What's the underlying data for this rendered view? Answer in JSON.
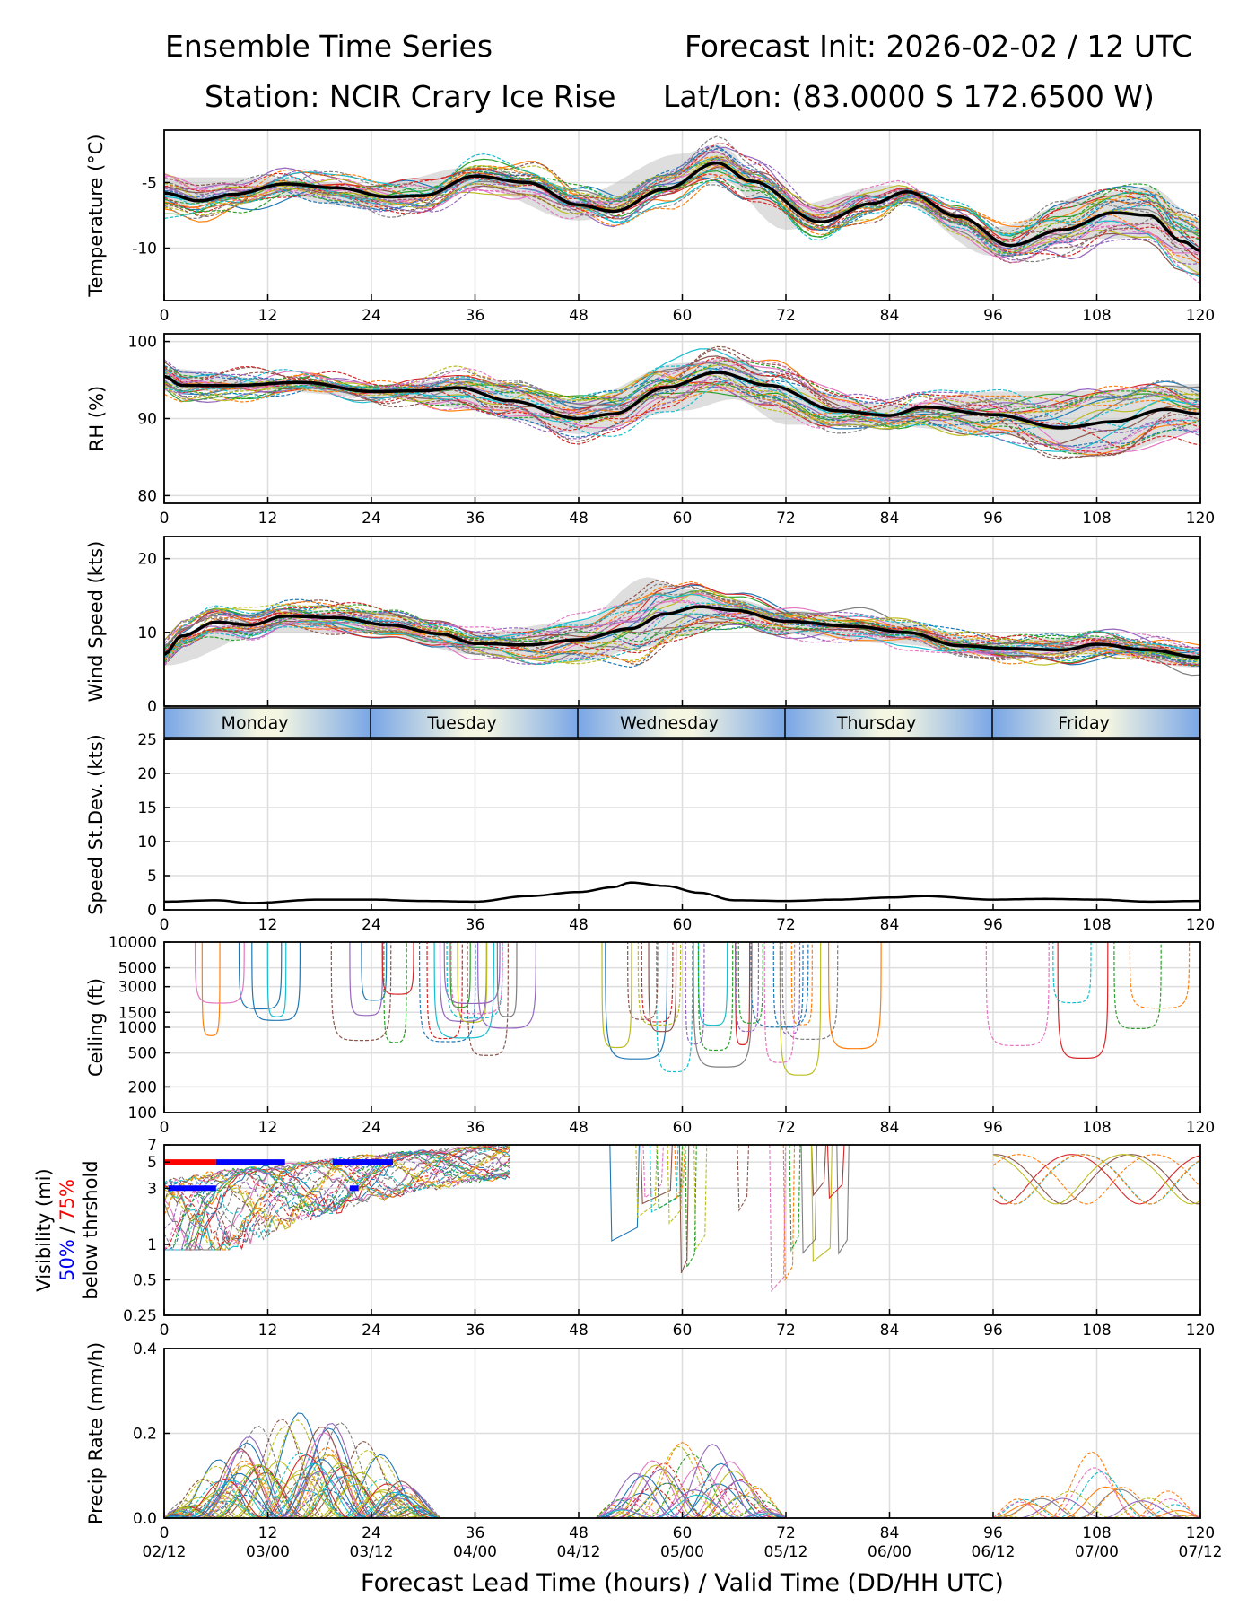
{
  "header": {
    "title_left": "Ensemble Time Series",
    "title_right": "Forecast Init: 2026-02-02 / 12 UTC",
    "station": "Station: NCIR Crary Ice Rise",
    "latlon": "Lat/Lon: (83.0000 S 172.6500 W)"
  },
  "xaxis": {
    "label": "Forecast Lead Time (hours) / Valid Time (DD/HH UTC)",
    "hour_ticks": [
      0,
      12,
      24,
      36,
      48,
      60,
      72,
      84,
      96,
      108,
      120
    ],
    "valid_labels": [
      "02/12",
      "03/00",
      "03/12",
      "04/00",
      "04/12",
      "05/00",
      "05/12",
      "06/00",
      "06/12",
      "07/00",
      "07/12"
    ],
    "range": [
      0,
      120
    ]
  },
  "days": [
    "Monday",
    "Tuesday",
    "Wednesday",
    "Thursday",
    "Friday"
  ],
  "ensemble_colors": [
    "#1f77b4",
    "#ff7f0e",
    "#2ca02c",
    "#d62728",
    "#9467bd",
    "#8c564b",
    "#e377c2",
    "#7f7f7f",
    "#bcbd22",
    "#17becf"
  ],
  "chart_data": [
    {
      "type": "line",
      "id": "temp",
      "ylabel": "Temperature (°C)",
      "ylim": [
        -14,
        -1
      ],
      "yticks": [
        -5,
        -10
      ],
      "grid": true,
      "series": [
        {
          "name": "ensemble mean",
          "x": [
            0,
            4,
            8,
            14,
            20,
            26,
            30,
            36,
            42,
            48,
            52,
            58,
            64,
            68,
            76,
            82,
            86,
            92,
            98,
            104,
            110,
            114,
            118,
            120
          ],
          "values": [
            -5.8,
            -6.4,
            -5.9,
            -5.1,
            -5.4,
            -6.1,
            -6.0,
            -4.5,
            -5.0,
            -6.7,
            -7.2,
            -5.5,
            -3.5,
            -4.9,
            -8.0,
            -6.6,
            -5.7,
            -7.6,
            -9.8,
            -8.6,
            -7.3,
            -7.5,
            -9.5,
            -10.2
          ]
        },
        {
          "name": "spread upper",
          "x": [
            0,
            12,
            24,
            36,
            48,
            60,
            64,
            72,
            84,
            96,
            108,
            114,
            120
          ],
          "values": [
            -4.6,
            -4.6,
            -5.2,
            -3.8,
            -5.9,
            -2.8,
            -2.1,
            -6.8,
            -5.2,
            -8.4,
            -5.8,
            -5.3,
            -7.8
          ]
        },
        {
          "name": "spread lower",
          "x": [
            0,
            12,
            24,
            36,
            48,
            60,
            64,
            72,
            84,
            96,
            108,
            114,
            120
          ],
          "values": [
            -6.9,
            -6.0,
            -7.0,
            -5.4,
            -7.9,
            -5.2,
            -4.6,
            -8.6,
            -6.2,
            -10.6,
            -9.3,
            -9.2,
            -12.0
          ]
        }
      ]
    },
    {
      "type": "line",
      "id": "rh",
      "ylabel": "RH (%)",
      "ylim": [
        79,
        101
      ],
      "yticks": [
        80,
        90,
        100
      ],
      "grid": true,
      "series": [
        {
          "name": "ensemble mean",
          "x": [
            0,
            2,
            8,
            16,
            24,
            30,
            34,
            40,
            48,
            52,
            58,
            64,
            70,
            78,
            84,
            88,
            96,
            104,
            110,
            116,
            120
          ],
          "values": [
            95.5,
            94.3,
            94.3,
            94.7,
            93.5,
            93.6,
            94.0,
            92.3,
            90.0,
            90.6,
            94.0,
            96.0,
            94.3,
            91.0,
            90.4,
            91.5,
            90.5,
            88.8,
            89.6,
            91.2,
            90.6
          ]
        },
        {
          "name": "spread upper",
          "x": [
            0,
            12,
            24,
            36,
            48,
            60,
            66,
            72,
            84,
            96,
            108,
            120
          ],
          "values": [
            96.5,
            95.2,
            94.2,
            95.2,
            92.5,
            97.2,
            98.0,
            94.2,
            91.8,
            93.5,
            93.6,
            94.5
          ]
        },
        {
          "name": "spread lower",
          "x": [
            0,
            12,
            24,
            36,
            48,
            60,
            66,
            72,
            84,
            96,
            108,
            120
          ],
          "values": [
            93.5,
            93.6,
            92.8,
            91.2,
            88.0,
            91.0,
            92.5,
            89.2,
            89.0,
            88.0,
            85.0,
            88.2
          ]
        }
      ]
    },
    {
      "type": "line",
      "id": "wind",
      "ylabel": "Wind Speed (kts)",
      "ylim": [
        0,
        23
      ],
      "yticks": [
        0,
        10,
        20
      ],
      "grid": true,
      "series": [
        {
          "name": "ensemble mean",
          "x": [
            0,
            2,
            6,
            10,
            14,
            20,
            26,
            32,
            36,
            42,
            48,
            54,
            58,
            62,
            66,
            72,
            80,
            86,
            92,
            98,
            104,
            108,
            114,
            120
          ],
          "values": [
            7.0,
            9.5,
            11.4,
            11.0,
            12.2,
            12.0,
            11.0,
            9.8,
            8.5,
            8.3,
            9.0,
            10.5,
            12.5,
            13.5,
            13.0,
            11.5,
            10.8,
            10.0,
            8.2,
            7.8,
            7.6,
            8.4,
            7.6,
            6.6
          ]
        },
        {
          "name": "spread upper",
          "x": [
            0,
            12,
            24,
            36,
            48,
            56,
            60,
            66,
            72,
            84,
            96,
            108,
            120
          ],
          "values": [
            8.5,
            13.0,
            13.0,
            10.0,
            11.5,
            17.5,
            16.0,
            14.5,
            13.0,
            11.5,
            9.0,
            9.5,
            7.8
          ]
        },
        {
          "name": "spread lower",
          "x": [
            0,
            12,
            24,
            36,
            48,
            56,
            60,
            66,
            72,
            84,
            96,
            108,
            120
          ],
          "values": [
            5.5,
            10.0,
            10.0,
            7.0,
            6.0,
            8.0,
            9.5,
            11.0,
            9.8,
            8.5,
            6.8,
            7.0,
            5.2
          ]
        }
      ]
    },
    {
      "type": "line",
      "id": "sd",
      "ylabel": "Speed St.Dev. (kts)",
      "ylim": [
        0,
        25
      ],
      "yticks": [
        0,
        5,
        10,
        15,
        20,
        25
      ],
      "grid": true,
      "series": [
        {
          "name": "speed st.dev.",
          "x": [
            0,
            6,
            10,
            18,
            24,
            30,
            36,
            42,
            48,
            52,
            54,
            58,
            62,
            66,
            72,
            78,
            84,
            88,
            96,
            102,
            108,
            114,
            120
          ],
          "values": [
            1.2,
            1.4,
            1.0,
            1.5,
            1.5,
            1.3,
            1.2,
            2.0,
            2.6,
            3.3,
            4.0,
            3.5,
            2.5,
            1.4,
            1.3,
            1.5,
            1.8,
            2.0,
            1.5,
            1.6,
            1.5,
            1.2,
            1.3
          ]
        }
      ]
    },
    {
      "type": "line",
      "id": "ceil",
      "ylabel": "Ceiling (ft)",
      "yscale": "log",
      "ylim": [
        100,
        10000
      ],
      "yticks": [
        100,
        200,
        500,
        1000,
        1500,
        3000,
        5000,
        10000
      ],
      "grid": true,
      "series": []
    },
    {
      "type": "line",
      "id": "vis",
      "ylabel_parts": [
        "Visibility (mi)",
        "50%",
        "/",
        "75%",
        "below thrshold"
      ],
      "yscale": "log",
      "ylim": [
        0.25,
        7
      ],
      "yticks": [
        0.25,
        0.5,
        1,
        3,
        5,
        7
      ],
      "grid": true,
      "series": [
        {
          "name": "75% below threshold (5 mi)",
          "color": "#ff0000",
          "x": [
            0,
            6
          ],
          "values": [
            5,
            5
          ]
        },
        {
          "name": "50% below threshold (5 mi)",
          "color": "#0000ff",
          "x": [
            6,
            14,
            19.5,
            26.5
          ],
          "values": [
            5,
            5,
            5,
            5
          ]
        },
        {
          "name": "50% below threshold (3 mi)",
          "color": "#0000ff",
          "x": [
            0.5,
            6,
            21.5,
            22.5
          ],
          "values": [
            3,
            3,
            3,
            3
          ]
        }
      ]
    },
    {
      "type": "line",
      "id": "precip",
      "ylabel": "Precip Rate (mm/h)",
      "ylim": [
        0,
        0.4
      ],
      "yticks": [
        0.0,
        0.2,
        0.4
      ],
      "grid": true,
      "series": []
    }
  ]
}
